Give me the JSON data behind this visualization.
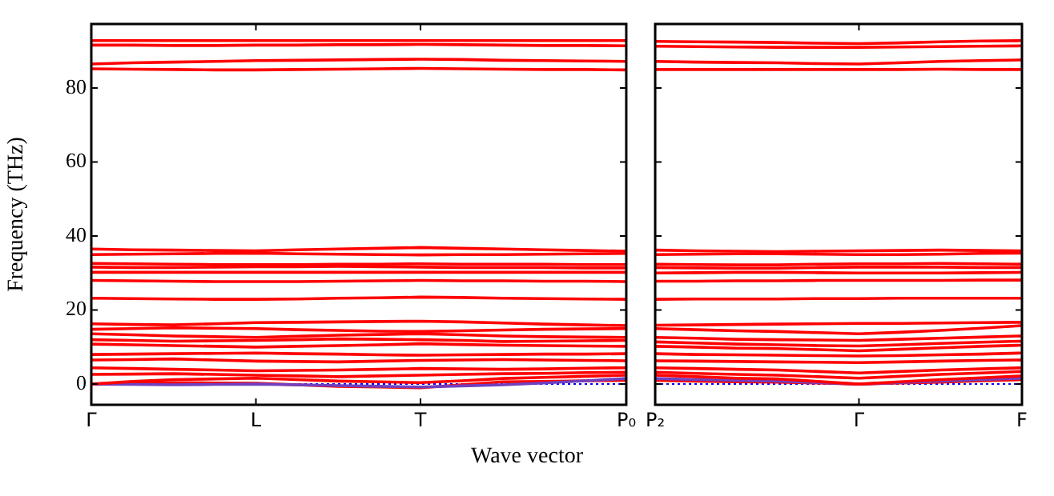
{
  "chart_data": [
    {
      "type": "line",
      "xlabel": "Wave vector",
      "ylabel": "Frequency (THz)",
      "categories": [
        "Γ",
        null,
        null,
        null,
        "L",
        null,
        null,
        null,
        "T",
        null,
        null,
        null,
        null,
        "P₀"
      ],
      "ylim": [
        -5.6,
        97.3
      ],
      "yticks": [
        0,
        20,
        40,
        60,
        80
      ],
      "grid": false,
      "legend": false,
      "marker": "none",
      "line_style": "solid",
      "ref_lines": [
        {
          "axis": "y",
          "value": 0,
          "color": "#0000ff",
          "line_style": "dotted"
        }
      ],
      "series": [
        {
          "color": "#ff0000",
          "values": [
            92.8,
            92.8,
            92.8,
            92.8,
            92.8,
            92.8,
            92.8,
            92.8,
            92.8,
            92.8,
            92.8,
            92.8,
            92.8,
            92.8
          ]
        },
        {
          "color": "#ff0000",
          "values": [
            91.6,
            91.6,
            91.5,
            91.5,
            91.6,
            91.6,
            91.7,
            91.7,
            91.8,
            91.7,
            91.6,
            91.5,
            91.5,
            91.4
          ]
        },
        {
          "color": "#ff0000",
          "values": [
            86.5,
            86.8,
            87.0,
            87.2,
            87.4,
            87.5,
            87.6,
            87.7,
            87.8,
            87.7,
            87.5,
            87.4,
            87.3,
            87.2
          ]
        },
        {
          "color": "#ff0000",
          "values": [
            85.2,
            85.1,
            85.0,
            84.9,
            84.9,
            85.0,
            85.1,
            85.2,
            85.3,
            85.2,
            85.1,
            85.0,
            85.0,
            84.9
          ]
        },
        {
          "color": "#ff0000",
          "values": [
            36.5,
            36.3,
            36.2,
            36.1,
            36.0,
            36.3,
            36.5,
            36.7,
            36.9,
            36.7,
            36.5,
            36.3,
            36.1,
            35.9
          ]
        },
        {
          "color": "#ff0000",
          "values": [
            35.0,
            35.1,
            35.2,
            35.3,
            35.4,
            35.2,
            35.1,
            35.0,
            34.9,
            35.0,
            35.0,
            35.1,
            35.2,
            35.3
          ]
        },
        {
          "color": "#ff0000",
          "values": [
            32.6,
            32.5,
            32.4,
            32.3,
            32.3,
            32.3,
            32.4,
            32.4,
            32.5,
            32.4,
            32.4,
            32.4,
            32.3,
            32.3
          ]
        },
        {
          "color": "#ff0000",
          "values": [
            31.6,
            31.5,
            31.5,
            31.6,
            31.7,
            31.7,
            31.8,
            31.7,
            31.6,
            31.5,
            31.5,
            31.5,
            31.4,
            31.4
          ]
        },
        {
          "color": "#ff0000",
          "values": [
            30.2,
            30.2,
            30.2,
            30.2,
            30.2,
            30.2,
            30.2,
            30.2,
            30.2,
            30.2,
            30.2,
            30.2,
            30.2,
            30.2
          ]
        },
        {
          "color": "#ff0000",
          "values": [
            28.0,
            27.9,
            27.8,
            27.7,
            27.7,
            27.7,
            27.8,
            27.9,
            28.0,
            27.9,
            27.9,
            27.8,
            27.8,
            27.7
          ]
        },
        {
          "color": "#ff0000",
          "values": [
            23.2,
            23.1,
            23.0,
            22.9,
            22.9,
            23.0,
            23.2,
            23.3,
            23.5,
            23.4,
            23.2,
            23.1,
            23.0,
            22.9
          ]
        },
        {
          "color": "#ff0000",
          "values": [
            16.3,
            16.1,
            16.0,
            16.3,
            16.6,
            16.7,
            16.8,
            16.9,
            17.0,
            16.8,
            16.5,
            16.2,
            16.0,
            15.8
          ]
        },
        {
          "color": "#ff0000",
          "values": [
            14.8,
            15.0,
            15.2,
            15.1,
            15.0,
            14.7,
            14.5,
            14.3,
            14.2,
            14.4,
            14.6,
            14.8,
            14.9,
            15.0
          ]
        },
        {
          "color": "#ff0000",
          "values": [
            13.6,
            13.3,
            13.0,
            12.8,
            12.6,
            12.9,
            13.2,
            13.4,
            13.6,
            13.3,
            13.0,
            12.8,
            12.7,
            12.6
          ]
        },
        {
          "color": "#ff0000",
          "values": [
            12.0,
            11.8,
            11.6,
            11.7,
            11.8,
            12.0,
            12.2,
            12.1,
            12.0,
            11.8,
            11.5,
            11.6,
            11.7,
            11.8
          ]
        },
        {
          "color": "#ff0000",
          "values": [
            10.8,
            10.6,
            10.4,
            10.2,
            10.0,
            10.2,
            10.4,
            10.6,
            10.9,
            10.7,
            10.5,
            10.4,
            10.3,
            10.2
          ]
        },
        {
          "color": "#ff0000",
          "values": [
            8.0,
            8.1,
            8.2,
            8.3,
            8.4,
            8.2,
            8.1,
            7.9,
            7.8,
            7.9,
            8.0,
            8.1,
            8.1,
            8.2
          ]
        },
        {
          "color": "#ff0000",
          "values": [
            6.5,
            6.6,
            6.8,
            6.5,
            6.2,
            6.1,
            6.0,
            6.2,
            6.4,
            6.5,
            6.6,
            6.5,
            6.4,
            6.3
          ]
        },
        {
          "color": "#ff0000",
          "values": [
            4.4,
            4.2,
            4.0,
            3.8,
            3.6,
            3.7,
            3.8,
            4.0,
            4.2,
            4.1,
            4.0,
            4.1,
            4.3,
            4.4
          ]
        },
        {
          "color": "#ff0000",
          "values": [
            2.6,
            2.7,
            2.8,
            2.6,
            2.4,
            2.2,
            2.0,
            2.2,
            2.4,
            2.6,
            2.8,
            2.9,
            3.1,
            3.2
          ]
        },
        {
          "color": "#ff0000",
          "values": [
            0,
            0.7,
            1.2,
            1.4,
            1.6,
            1.2,
            0.8,
            0.6,
            0.4,
            0.9,
            1.5,
            1.8,
            2.1,
            2.4
          ]
        },
        {
          "color": "#7040c0",
          "values": [
            0,
            -0.1,
            -0.2,
            -0.1,
            0.0,
            -0.2,
            -0.4,
            -0.6,
            -0.8,
            -0.5,
            -0.2,
            0.3,
            0.9,
            1.5
          ]
        },
        {
          "color": "#ff0000",
          "values": [
            0,
            0.2,
            0.4,
            0.3,
            0.2,
            -0.2,
            -0.6,
            -0.8,
            -1.0,
            -0.2,
            0.6,
            0.7,
            0.9,
            1.0
          ]
        }
      ]
    },
    {
      "type": "line",
      "categories": [
        "P₂",
        null,
        null,
        null,
        null,
        "Γ",
        null,
        null,
        null,
        "F"
      ],
      "ylim": [
        -5.6,
        97.3
      ],
      "yticks": [
        0,
        20,
        40,
        60,
        80
      ],
      "tick_labels": "x",
      "grid": false,
      "legend": false,
      "marker": "none",
      "line_style": "solid",
      "ref_lines": [
        {
          "axis": "y",
          "value": 0,
          "color": "#0000ff",
          "line_style": "dotted"
        }
      ],
      "series": [
        {
          "color": "#ff0000",
          "values": [
            92.6,
            92.5,
            92.4,
            92.3,
            92.1,
            92.0,
            92.2,
            92.5,
            92.7,
            92.8
          ]
        },
        {
          "color": "#ff0000",
          "values": [
            91.3,
            91.2,
            91.1,
            91.0,
            91.0,
            91.0,
            91.1,
            91.2,
            91.3,
            91.4
          ]
        },
        {
          "color": "#ff0000",
          "values": [
            87.2,
            87.0,
            86.9,
            86.8,
            86.6,
            86.5,
            86.8,
            87.2,
            87.4,
            87.6
          ]
        },
        {
          "color": "#ff0000",
          "values": [
            85.0,
            85.0,
            85.0,
            85.0,
            85.0,
            85.0,
            85.0,
            85.1,
            85.0,
            85.0
          ]
        },
        {
          "color": "#ff0000",
          "values": [
            36.2,
            36.0,
            35.9,
            35.8,
            35.9,
            36.0,
            36.1,
            36.2,
            36.1,
            36.0
          ]
        },
        {
          "color": "#ff0000",
          "values": [
            35.0,
            35.1,
            35.2,
            35.2,
            35.1,
            35.0,
            35.0,
            35.1,
            35.3,
            35.4
          ]
        },
        {
          "color": "#ff0000",
          "values": [
            32.4,
            32.3,
            32.2,
            32.2,
            32.4,
            32.5,
            32.5,
            32.6,
            32.5,
            32.4
          ]
        },
        {
          "color": "#ff0000",
          "values": [
            31.5,
            31.4,
            31.3,
            31.3,
            31.5,
            31.6,
            31.6,
            31.6,
            31.5,
            31.5
          ]
        },
        {
          "color": "#ff0000",
          "values": [
            30.0,
            30.1,
            30.2,
            30.2,
            30.1,
            30.0,
            30.0,
            30.0,
            30.1,
            30.2
          ]
        },
        {
          "color": "#ff0000",
          "values": [
            27.8,
            27.8,
            27.9,
            27.9,
            28.0,
            28.0,
            28.0,
            28.0,
            28.1,
            28.1
          ]
        },
        {
          "color": "#ff0000",
          "values": [
            22.9,
            23.0,
            23.0,
            23.0,
            23.1,
            23.1,
            23.2,
            23.2,
            23.2,
            23.2
          ]
        },
        {
          "color": "#ff0000",
          "values": [
            15.9,
            16.0,
            16.1,
            16.2,
            16.3,
            16.4,
            16.4,
            16.5,
            16.6,
            16.7
          ]
        },
        {
          "color": "#ff0000",
          "values": [
            15.0,
            14.7,
            14.4,
            14.2,
            13.9,
            13.6,
            14.0,
            14.5,
            15.1,
            15.8
          ]
        },
        {
          "color": "#ff0000",
          "values": [
            12.6,
            12.4,
            12.1,
            12.0,
            11.9,
            11.8,
            12.1,
            12.4,
            12.7,
            13.0
          ]
        },
        {
          "color": "#ff0000",
          "values": [
            11.4,
            11.1,
            10.8,
            10.6,
            10.4,
            10.3,
            10.6,
            11.0,
            11.3,
            11.6
          ]
        },
        {
          "color": "#ff0000",
          "values": [
            10.2,
            10.0,
            9.7,
            9.6,
            9.3,
            9.0,
            9.4,
            9.8,
            10.2,
            10.5
          ]
        },
        {
          "color": "#ff0000",
          "values": [
            8.2,
            8.0,
            7.9,
            7.8,
            7.7,
            7.6,
            7.7,
            7.9,
            8.1,
            8.4
          ]
        },
        {
          "color": "#ff0000",
          "values": [
            6.3,
            6.2,
            6.1,
            6.0,
            5.9,
            5.8,
            6.0,
            6.2,
            6.4,
            6.5
          ]
        },
        {
          "color": "#ff0000",
          "values": [
            4.4,
            4.2,
            4.0,
            3.8,
            3.4,
            3.0,
            3.4,
            3.8,
            4.1,
            4.4
          ]
        },
        {
          "color": "#ff0000",
          "values": [
            3.2,
            2.9,
            2.6,
            2.4,
            2.0,
            1.6,
            2.1,
            2.6,
            3.0,
            3.4
          ]
        },
        {
          "color": "#ff0000",
          "values": [
            2.4,
            2.0,
            1.6,
            1.4,
            0.7,
            0,
            0.6,
            1.2,
            1.7,
            2.2
          ]
        },
        {
          "color": "#7040c0",
          "values": [
            1.5,
            1.2,
            1.0,
            0.8,
            0.4,
            0,
            0.4,
            0.8,
            1.2,
            1.6
          ]
        },
        {
          "color": "#ff0000",
          "values": [
            1.0,
            0.8,
            0.6,
            0.5,
            0.3,
            0,
            0.3,
            0.5,
            0.9,
            1.2
          ]
        }
      ]
    }
  ]
}
